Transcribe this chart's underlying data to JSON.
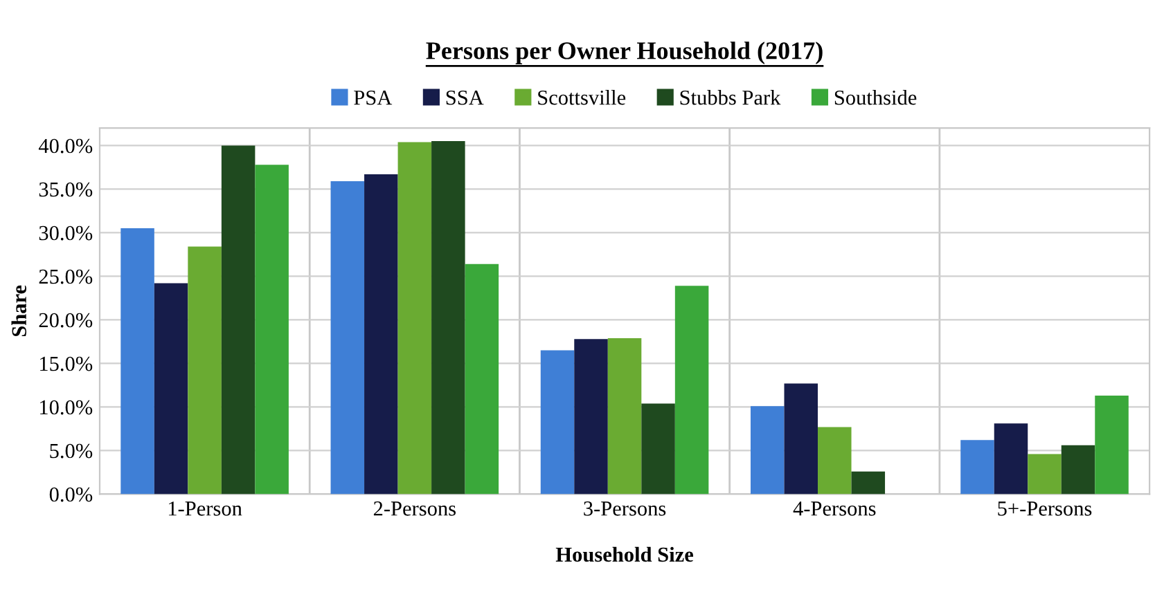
{
  "chart_data": {
    "type": "bar",
    "title": "Persons per Owner Household (2017)",
    "xlabel": "Household Size",
    "ylabel": "Share",
    "categories": [
      "1-Person",
      "2-Persons",
      "3-Persons",
      "4-Persons",
      "5+-Persons"
    ],
    "series": [
      {
        "name": "PSA",
        "color": "#3f7fd6",
        "values": [
          30.5,
          35.9,
          16.5,
          10.1,
          6.2
        ]
      },
      {
        "name": "SSA",
        "color": "#161c4a",
        "values": [
          24.2,
          36.7,
          17.8,
          12.7,
          8.1
        ]
      },
      {
        "name": "Scottsville",
        "color": "#6aab32",
        "values": [
          28.4,
          40.4,
          17.9,
          7.7,
          4.6
        ]
      },
      {
        "name": "Stubbs Park",
        "color": "#1f4a1f",
        "values": [
          40.0,
          40.5,
          10.4,
          2.6,
          5.6
        ]
      },
      {
        "name": "Southside",
        "color": "#3aa83a",
        "values": [
          37.8,
          26.4,
          23.9,
          0.0,
          11.3
        ]
      }
    ],
    "ylim": [
      0,
      42
    ],
    "yticks": [
      {
        "value": 0,
        "label": "0.0%"
      },
      {
        "value": 5,
        "label": "5.0%"
      },
      {
        "value": 10,
        "label": "10.0%"
      },
      {
        "value": 15,
        "label": "15.0%"
      },
      {
        "value": 20,
        "label": "20.0%"
      },
      {
        "value": 25,
        "label": "25.0%"
      },
      {
        "value": 30,
        "label": "30.0%"
      },
      {
        "value": 35,
        "label": "35.0%"
      },
      {
        "value": 40,
        "label": "40.0%"
      }
    ],
    "grid": true,
    "legend": "top"
  }
}
